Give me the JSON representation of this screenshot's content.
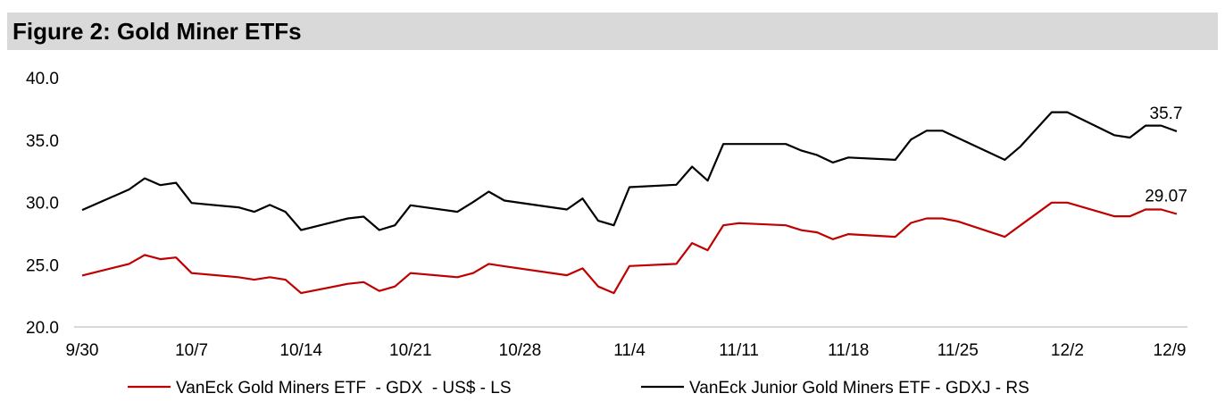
{
  "chart_data": {
    "type": "line",
    "title": "Figure 2: Gold Miner ETFs",
    "xlabel": "",
    "ylabel": "",
    "ylim": [
      20,
      40
    ],
    "yticks": [
      "20.0",
      "25.0",
      "30.0",
      "35.0",
      "40.0"
    ],
    "xticks": [
      "9/30",
      "10/7",
      "10/14",
      "10/21",
      "10/28",
      "11/4",
      "11/11",
      "11/18",
      "11/25",
      "12/2",
      "12/9"
    ],
    "grid": false,
    "legend_position": "bottom",
    "x": [
      "9/30",
      "10/3",
      "10/4",
      "10/5",
      "10/6",
      "10/7",
      "10/10",
      "10/11",
      "10/12",
      "10/13",
      "10/14",
      "10/17",
      "10/18",
      "10/19",
      "10/20",
      "10/21",
      "10/24",
      "10/25",
      "10/26",
      "10/27",
      "10/31",
      "11/1",
      "11/2",
      "11/3",
      "11/4",
      "11/7",
      "11/8",
      "11/9",
      "11/10",
      "11/11",
      "11/14",
      "11/15",
      "11/16",
      "11/17",
      "11/18",
      "11/21",
      "11/22",
      "11/23",
      "11/24",
      "11/25",
      "11/28",
      "11/29",
      "12/1",
      "12/2",
      "12/5",
      "12/6",
      "12/7",
      "12/8",
      "12/9"
    ],
    "series": [
      {
        "name": "VanEck Gold Miners ETF  - GDX  - US$ - LS",
        "color": "#c00000",
        "end_label": "29.07",
        "values": [
          24.13,
          25.06,
          25.78,
          25.44,
          25.58,
          24.32,
          23.99,
          23.79,
          23.99,
          23.79,
          22.72,
          23.46,
          23.6,
          22.89,
          23.25,
          24.32,
          23.99,
          24.32,
          25.06,
          24.87,
          24.15,
          24.7,
          23.25,
          22.72,
          24.89,
          25.06,
          26.73,
          26.16,
          28.16,
          28.33,
          28.16,
          27.76,
          27.59,
          27.04,
          27.45,
          27.23,
          28.35,
          28.71,
          28.71,
          28.47,
          27.23,
          28.16,
          29.98,
          29.98,
          28.88,
          28.88,
          29.43,
          29.43,
          29.07
        ]
      },
      {
        "name": "VanEck Junior Gold Miners ETF - GDXJ - RS",
        "color": "#000000",
        "end_label": "35.7",
        "values": [
          29.38,
          31.03,
          31.93,
          31.38,
          31.57,
          29.95,
          29.6,
          29.24,
          29.79,
          29.24,
          27.78,
          28.71,
          28.85,
          27.78,
          28.16,
          29.76,
          29.24,
          30.02,
          30.86,
          30.14,
          29.43,
          30.31,
          28.52,
          28.16,
          31.22,
          31.41,
          32.86,
          31.74,
          34.68,
          34.68,
          34.68,
          34.15,
          33.79,
          33.2,
          33.6,
          33.41,
          35.04,
          35.75,
          35.75,
          35.17,
          33.41,
          34.49,
          37.23,
          37.23,
          35.39,
          35.2,
          36.16,
          36.16,
          35.7
        ]
      }
    ]
  }
}
